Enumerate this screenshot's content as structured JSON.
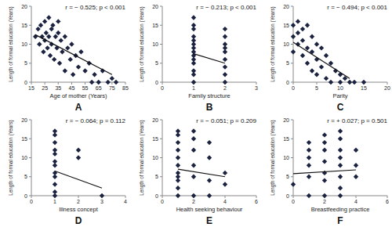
{
  "chart_data": [
    {
      "type": "scatter",
      "title": "A",
      "annotation": "r = − 0.525; p < 0.001",
      "xlabel": "Age of mother (Years)",
      "ylabel": "Length of formal education (Years)",
      "marker": "diamond",
      "color": "#1c2340",
      "x": [
        18,
        20,
        21,
        22,
        23,
        24,
        25,
        25,
        26,
        27,
        28,
        28,
        29,
        30,
        30,
        31,
        32,
        33,
        34,
        35,
        35,
        36,
        37,
        38,
        40,
        40,
        42,
        44,
        45,
        46,
        48,
        50,
        52,
        55,
        58,
        60,
        62,
        65,
        68,
        72,
        75,
        78
      ],
      "values": [
        12,
        14,
        10,
        15,
        12,
        8,
        16,
        11,
        13,
        9,
        17,
        12,
        7,
        14,
        10,
        15,
        6,
        12,
        9,
        13,
        16,
        5,
        11,
        8,
        12,
        3,
        9,
        6,
        10,
        2,
        7,
        4,
        8,
        3,
        5,
        0,
        2,
        0,
        3,
        0,
        1,
        0
      ],
      "trend": {
        "x": [
          18,
          75
        ],
        "values": [
          12.5,
          2
        ]
      },
      "xlim": [
        15,
        85
      ],
      "xticks": [
        15,
        25,
        35,
        45,
        55,
        65,
        75,
        85
      ],
      "ylim": [
        0,
        20
      ],
      "yticks": [
        0,
        5,
        10,
        15,
        20
      ]
    },
    {
      "type": "scatter",
      "title": "B",
      "annotation": "r = − 0.213; p < 0.001",
      "xlabel": "Family structure",
      "ylabel": "Length of formal education (Years)",
      "marker": "diamond",
      "color": "#1c2340",
      "x": [
        1,
        1,
        1,
        1,
        1,
        1,
        1,
        1,
        1,
        1,
        1,
        1,
        1,
        1,
        2,
        2,
        2,
        2,
        2,
        2,
        2,
        2,
        2
      ],
      "values": [
        0,
        2,
        3,
        5,
        6,
        7,
        8,
        9,
        10,
        11,
        12,
        14,
        15,
        17,
        0,
        2,
        4,
        6,
        8,
        9,
        10,
        12,
        14
      ],
      "trend": {
        "x": [
          1,
          2
        ],
        "values": [
          7.5,
          5
        ]
      },
      "xlim": [
        0,
        3
      ],
      "xticks": [
        0,
        1,
        2,
        3
      ],
      "ylim": [
        0,
        20
      ],
      "yticks": [
        0,
        5,
        10,
        15,
        20
      ]
    },
    {
      "type": "scatter",
      "title": "C",
      "annotation": "r = − 0.494; p < 0.001",
      "xlabel": "Parity",
      "ylabel": "Length of formal education (Years)",
      "marker": "diamond",
      "color": "#1c2340",
      "x": [
        0,
        0,
        0,
        1,
        1,
        1,
        2,
        2,
        2,
        3,
        3,
        3,
        4,
        4,
        4,
        5,
        5,
        5,
        6,
        6,
        7,
        7,
        8,
        8,
        9,
        10,
        10,
        11,
        12,
        13,
        15
      ],
      "values": [
        15,
        12,
        8,
        16,
        13,
        10,
        14,
        11,
        7,
        15,
        9,
        5,
        12,
        8,
        3,
        10,
        6,
        2,
        9,
        4,
        7,
        1,
        5,
        0,
        3,
        2,
        0,
        1,
        0,
        0,
        0
      ],
      "trend": {
        "x": [
          0,
          12
        ],
        "values": [
          10.5,
          1
        ]
      },
      "xlim": [
        0,
        20
      ],
      "xticks": [
        0,
        5,
        10,
        15,
        20
      ],
      "ylim": [
        0,
        20
      ],
      "yticks": [
        0,
        5,
        10,
        15,
        20
      ]
    },
    {
      "type": "scatter",
      "title": "D",
      "annotation": "r = − 0.064; p = 0.112",
      "xlabel": "Illness concept",
      "ylabel": "Length of formal education (Years)",
      "marker": "diamond",
      "color": "#1c2340",
      "x": [
        1,
        1,
        1,
        1,
        1,
        1,
        1,
        1,
        1,
        1,
        1,
        1,
        2,
        2,
        3
      ],
      "values": [
        0,
        1,
        3,
        5,
        6,
        8,
        9,
        11,
        12,
        14,
        16,
        17,
        12,
        10,
        0
      ],
      "trend": {
        "x": [
          1,
          3
        ],
        "values": [
          6.5,
          2
        ]
      },
      "xlim": [
        0,
        4
      ],
      "xticks": [
        0,
        1,
        2,
        3,
        4
      ],
      "ylim": [
        0,
        20
      ],
      "yticks": [
        0,
        5,
        10,
        15,
        20
      ]
    },
    {
      "type": "scatter",
      "title": "E",
      "annotation": "r = − 0.051; p = 0.209",
      "xlabel": "Health seeking behaviour",
      "ylabel": "Length of formal education (Years)",
      "marker": "diamond",
      "color": "#1c2340",
      "x": [
        1,
        1,
        1,
        1,
        1,
        1,
        1,
        1,
        1,
        1,
        1,
        2,
        2,
        2,
        2,
        2,
        2,
        3,
        3,
        3,
        3,
        4,
        4
      ],
      "values": [
        0,
        2,
        4,
        5,
        6,
        8,
        10,
        12,
        14,
        16,
        17,
        0,
        5,
        8,
        12,
        15,
        17,
        0,
        4,
        10,
        14,
        3,
        6
      ],
      "trend": {
        "x": [
          1,
          4
        ],
        "values": [
          7,
          5
        ]
      },
      "xlim": [
        0,
        6
      ],
      "xticks": [
        0,
        2,
        4,
        6
      ],
      "ylim": [
        0,
        20
      ],
      "yticks": [
        0,
        5,
        10,
        15,
        20
      ]
    },
    {
      "type": "scatter",
      "title": "F",
      "annotation": "r = + 0.027; p = 0.501",
      "xlabel": "Breastfeeding practice",
      "ylabel": "Length of formal education (Years)",
      "marker": "diamond",
      "color": "#1c2340",
      "x": [
        0,
        1,
        1,
        1,
        1,
        1,
        1,
        2,
        2,
        2,
        2,
        2,
        2,
        2,
        3,
        3,
        3,
        3,
        3,
        3,
        3,
        3,
        4,
        4,
        4
      ],
      "values": [
        3,
        0,
        5,
        8,
        10,
        12,
        14,
        0,
        4,
        6,
        9,
        12,
        14,
        16,
        0,
        2,
        5,
        8,
        10,
        12,
        15,
        17,
        5,
        8,
        12
      ],
      "trend": {
        "x": [
          0,
          4
        ],
        "values": [
          5.8,
          6.8
        ]
      },
      "xlim": [
        0,
        6
      ],
      "xticks": [
        0,
        2,
        4,
        6
      ],
      "ylim": [
        0,
        20
      ],
      "yticks": [
        0,
        5,
        10,
        15,
        20
      ]
    }
  ]
}
